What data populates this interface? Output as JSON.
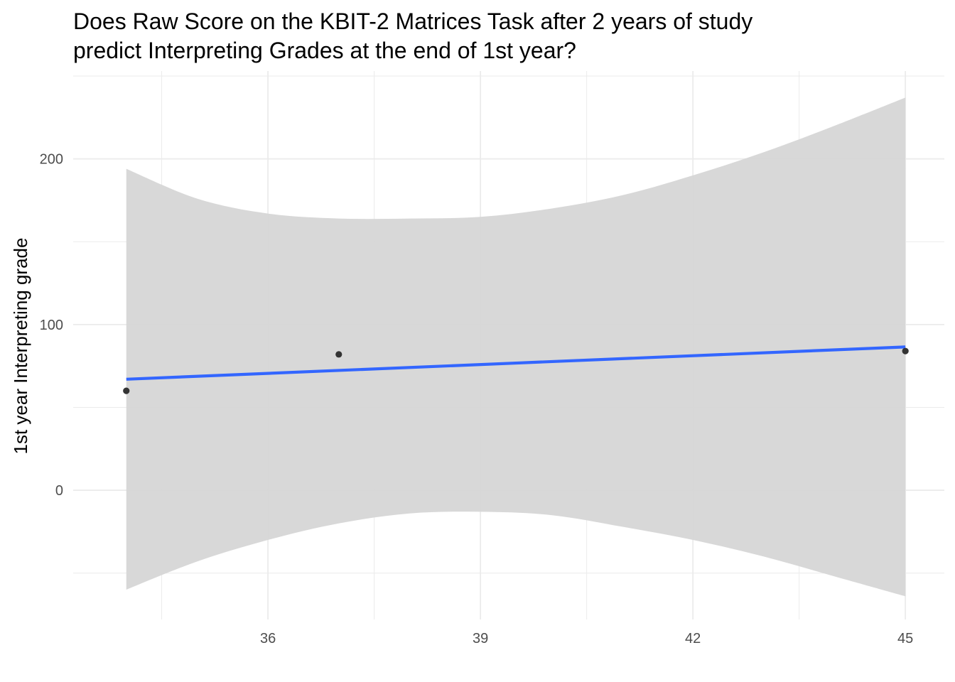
{
  "chart_data": {
    "type": "scatter",
    "title_lines": [
      "Does Raw Score on the KBIT-2 Matrices Task after 2 years of study",
      "predict Interpreting Grades at the end of 1st year?"
    ],
    "xlabel": "",
    "ylabel": "1st year Interpreting grade",
    "xlim": [
      33.25,
      45.55
    ],
    "ylim": [
      -78,
      253
    ],
    "x_ticks": [
      36,
      39,
      42,
      45
    ],
    "y_ticks": [
      0,
      100,
      200
    ],
    "x_minor_gridlines": [
      34.5,
      37.5,
      40.5,
      43.5
    ],
    "y_minor_gridlines": [
      -50,
      50,
      150,
      250
    ],
    "grid": true,
    "points": [
      {
        "x": 34,
        "y": 60
      },
      {
        "x": 37,
        "y": 82
      },
      {
        "x": 45,
        "y": 84
      }
    ],
    "fit_line": {
      "method": "linear regression",
      "x": [
        34,
        45
      ],
      "y": [
        67,
        86.5
      ],
      "color": "#3366ff"
    },
    "confidence_band": {
      "color": "#d6d6d6",
      "x": [
        34,
        35,
        36,
        37,
        38,
        39,
        40,
        41,
        42,
        43,
        44,
        45
      ],
      "upper": [
        194,
        176,
        167,
        164,
        164,
        165,
        170,
        178,
        190,
        204,
        220,
        237
      ],
      "lower": [
        -60,
        -43,
        -30,
        -20,
        -14,
        -13,
        -15,
        -22,
        -30,
        -40,
        -52,
        -64
      ]
    }
  },
  "colors": {
    "grid": "#ebebeb",
    "point": "#333333",
    "text": "#000000",
    "tick_text": "#4d4d4d"
  }
}
